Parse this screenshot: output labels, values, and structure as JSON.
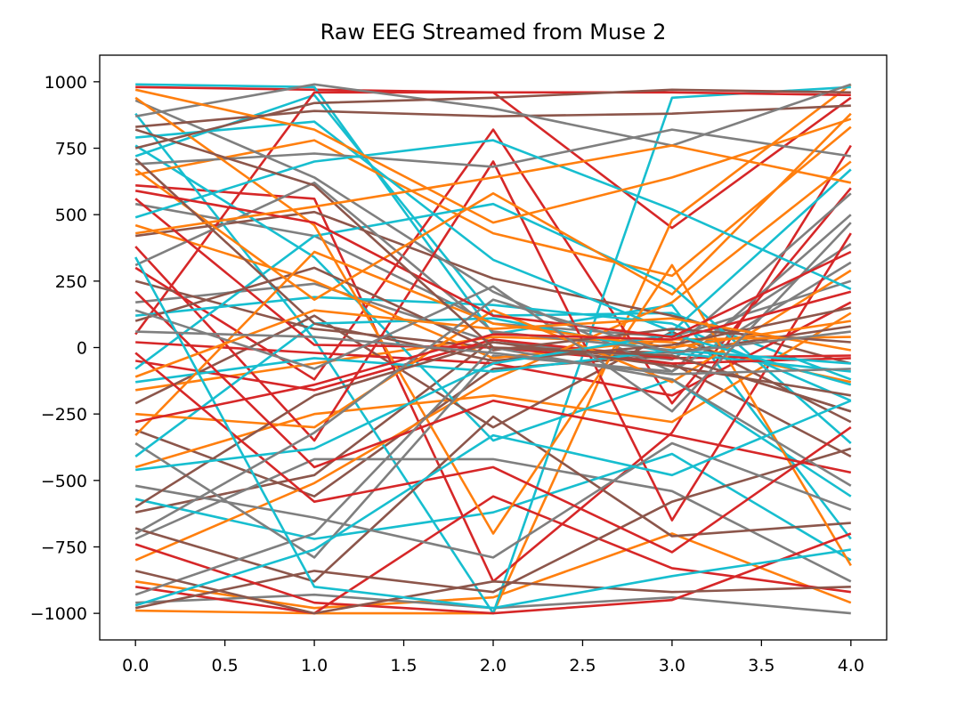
{
  "chart_data": {
    "type": "line",
    "title": "Raw EEG Streamed from Muse 2",
    "xlabel": "",
    "ylabel": "",
    "xlim": [
      -0.2,
      4.2
    ],
    "ylim": [
      -1100,
      1100
    ],
    "x": [
      0,
      1,
      2,
      3,
      4
    ],
    "x_ticks": [
      "0.0",
      "0.5",
      "1.0",
      "1.5",
      "2.0",
      "2.5",
      "3.0",
      "3.5",
      "4.0"
    ],
    "y_ticks": [
      "−1000",
      "−750",
      "−500",
      "−250",
      "0",
      "250",
      "500",
      "750",
      "1000"
    ],
    "grid": false,
    "legend": "none",
    "series_colors": [
      "#d62728",
      "#ff7f0e",
      "#17becf",
      "#7f7f7f",
      "#8c564b"
    ],
    "series": [
      {
        "values": [
          980,
          970,
          960,
          450,
          940
        ]
      },
      {
        "values": [
          -990,
          -1000,
          -1000,
          480,
          990
        ]
      },
      {
        "values": [
          720,
          950,
          120,
          130,
          -120
        ]
      },
      {
        "values": [
          540,
          420,
          90,
          40,
          250
        ]
      },
      {
        "values": [
          -620,
          -480,
          30,
          -60,
          -410
        ]
      },
      {
        "values": [
          300,
          -120,
          820,
          -210,
          600
        ]
      },
      {
        "values": [
          -880,
          -980,
          -940,
          -700,
          -960
        ]
      },
      {
        "values": [
          990,
          980,
          50,
          160,
          -720
        ]
      },
      {
        "values": [
          170,
          240,
          20,
          -45,
          390
        ]
      },
      {
        "values": [
          -310,
          -560,
          -80,
          -30,
          -240
        ]
      },
      {
        "values": [
          610,
          560,
          -880,
          -320,
          760
        ]
      },
      {
        "values": [
          -160,
          -60,
          40,
          20,
          -130
        ]
      },
      {
        "values": [
          880,
          30,
          -1000,
          940,
          980
        ]
      },
      {
        "values": [
          -720,
          -420,
          -420,
          -540,
          -880
        ]
      },
      {
        "values": [
          420,
          510,
          260,
          120,
          -60
        ]
      },
      {
        "values": [
          50,
          960,
          960,
          960,
          950
        ]
      },
      {
        "values": [
          -450,
          -250,
          -180,
          -280,
          130
        ]
      },
      {
        "values": [
          760,
          340,
          -350,
          -120,
          -560
        ]
      },
      {
        "values": [
          -960,
          -930,
          -980,
          -940,
          -1000
        ]
      },
      {
        "values": [
          250,
          70,
          0,
          -20,
          80
        ]
      },
      {
        "values": [
          -50,
          -160,
          30,
          -40,
          -30
        ]
      },
      {
        "values": [
          650,
          780,
          430,
          270,
          830
        ]
      },
      {
        "values": [
          -570,
          -720,
          -620,
          -400,
          -800
        ]
      },
      {
        "values": [
          930,
          640,
          210,
          -90,
          320
        ]
      },
      {
        "values": [
          -210,
          120,
          -300,
          60,
          -280
        ]
      },
      {
        "values": [
          380,
          -350,
          700,
          -650,
          430
        ]
      },
      {
        "values": [
          -800,
          -510,
          -120,
          170,
          700
        ]
      },
      {
        "values": [
          120,
          190,
          160,
          90,
          -200
        ]
      },
      {
        "values": [
          -360,
          -790,
          -30,
          -90,
          500
        ]
      },
      {
        "values": [
          830,
          890,
          870,
          880,
          910
        ]
      },
      {
        "values": [
          -900,
          -1000,
          -560,
          -830,
          -920
        ]
      },
      {
        "values": [
          460,
          250,
          -40,
          30,
          40
        ]
      },
      {
        "values": [
          -80,
          420,
          540,
          230,
          -360
        ]
      },
      {
        "values": [
          690,
          730,
          680,
          820,
          720
        ]
      },
      {
        "values": [
          -680,
          -880,
          -260,
          -710,
          -660
        ]
      },
      {
        "values": [
          20,
          -20,
          -60,
          -180,
          170
        ]
      },
      {
        "values": [
          940,
          460,
          -700,
          310,
          -820
        ]
      },
      {
        "values": [
          -410,
          90,
          110,
          -20,
          -90
        ]
      },
      {
        "values": [
          310,
          620,
          60,
          -10,
          580
        ]
      },
      {
        "values": [
          -980,
          -840,
          -920,
          -580,
          -380
        ]
      },
      {
        "values": [
          560,
          10,
          0,
          -60,
          -40
        ]
      },
      {
        "values": [
          -250,
          -300,
          140,
          -130,
          290
        ]
      },
      {
        "values": [
          790,
          850,
          330,
          60,
          670
        ]
      },
      {
        "values": [
          -520,
          -640,
          -790,
          -360,
          -610
        ]
      },
      {
        "values": [
          100,
          300,
          -10,
          70,
          20
        ]
      },
      {
        "values": [
          -740,
          -960,
          -1000,
          -950,
          -700
        ]
      },
      {
        "values": [
          670,
          180,
          580,
          200,
          880
        ]
      },
      {
        "values": [
          -130,
          -40,
          -90,
          -10,
          -60
        ]
      },
      {
        "values": [
          870,
          990,
          900,
          760,
          990
        ]
      },
      {
        "values": [
          -600,
          -180,
          20,
          -70,
          -180
        ]
      },
      {
        "values": [
          210,
          -450,
          -200,
          -330,
          -470
        ]
      },
      {
        "values": [
          -330,
          360,
          90,
          0,
          100
        ]
      },
      {
        "values": [
          490,
          700,
          780,
          520,
          220
        ]
      },
      {
        "values": [
          -930,
          -700,
          0,
          -120,
          -520
        ]
      },
      {
        "values": [
          710,
          90,
          -50,
          10,
          150
        ]
      },
      {
        "values": [
          -20,
          -580,
          -450,
          -770,
          -300
        ]
      },
      {
        "values": [
          970,
          820,
          470,
          640,
          860
        ]
      },
      {
        "values": [
          -460,
          -380,
          -60,
          50,
          -140
        ]
      },
      {
        "values": [
          140,
          -80,
          230,
          -240,
          470
        ]
      },
      {
        "values": [
          -840,
          -1000,
          -880,
          -920,
          -900
        ]
      },
      {
        "values": [
          590,
          470,
          120,
          40,
          360
        ]
      },
      {
        "values": [
          -110,
          140,
          70,
          110,
          -10
        ]
      },
      {
        "values": [
          340,
          -900,
          -980,
          -860,
          -760
        ]
      },
      {
        "values": [
          -700,
          -320,
          180,
          -20,
          60
        ]
      },
      {
        "values": [
          820,
          610,
          0,
          -30,
          -240
        ]
      },
      {
        "values": [
          -280,
          -140,
          50,
          30,
          210
        ]
      },
      {
        "values": [
          430,
          530,
          640,
          760,
          620
        ]
      },
      {
        "values": [
          -970,
          -760,
          -330,
          -480,
          -200
        ]
      },
      {
        "values": [
          60,
          40,
          -20,
          -100,
          -80
        ]
      },
      {
        "values": [
          750,
          920,
          940,
          970,
          960
        ]
      }
    ]
  }
}
